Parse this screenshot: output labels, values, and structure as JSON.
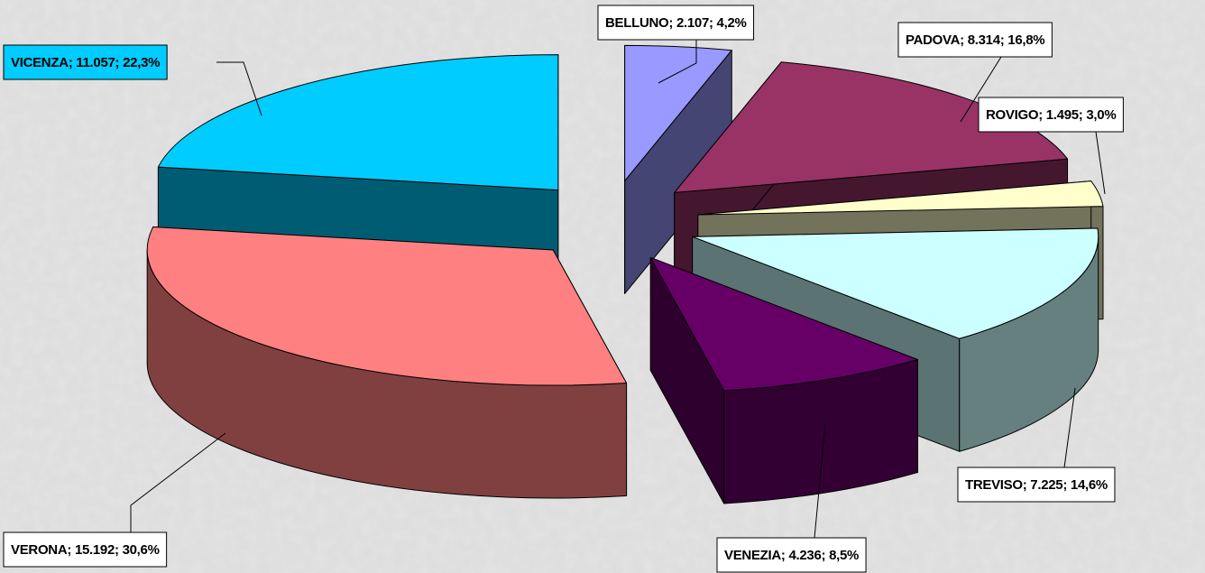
{
  "chart_data": {
    "type": "pie3d",
    "value_labels": [
      "BELLUNO; 2.107; 4,2%",
      "PADOVA; 8.314; 16,8%",
      "ROVIGO; 1.495; 3,0%",
      "TREVISO; 7.225; 14,6%",
      "VENEZIA; 4.236; 8,5%",
      "VERONA; 15.192; 30,6%",
      "VICENZA; 11.057; 22,3%"
    ],
    "values": [
      2107,
      8314,
      1495,
      7225,
      4236,
      15192,
      11057
    ],
    "colors": [
      "#9999ff",
      "#993366",
      "#ffffcc",
      "#ccffff",
      "#660066",
      "#ff8080",
      "#00ccff"
    ]
  }
}
